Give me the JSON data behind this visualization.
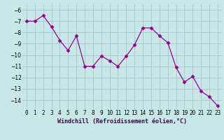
{
  "x": [
    0,
    1,
    2,
    3,
    4,
    5,
    6,
    7,
    8,
    9,
    10,
    11,
    12,
    13,
    14,
    15,
    16,
    17,
    18,
    19,
    20,
    21,
    22,
    23
  ],
  "y": [
    -7.0,
    -7.0,
    -6.5,
    -7.5,
    -8.7,
    -9.6,
    -8.3,
    -11.0,
    -11.0,
    -10.1,
    -10.5,
    -11.0,
    -10.1,
    -9.1,
    -7.6,
    -7.6,
    -8.3,
    -8.9,
    -11.1,
    -12.4,
    -11.9,
    -13.2,
    -13.7,
    -14.5
  ],
  "line_color": "#990099",
  "marker": "D",
  "marker_size": 2.5,
  "bg_color": "#c8e8e8",
  "grid_color": "#aacccc",
  "xlabel": "Windchill (Refroidissement éolien,°C)",
  "xlabel_fontsize": 6.0,
  "xlim": [
    -0.5,
    23.5
  ],
  "ylim": [
    -14.8,
    -5.5
  ],
  "yticks": [
    -14,
    -13,
    -12,
    -11,
    -10,
    -9,
    -8,
    -7,
    -6
  ],
  "xtick_labels": [
    "0",
    "1",
    "2",
    "3",
    "4",
    "5",
    "6",
    "7",
    "8",
    "9",
    "10",
    "11",
    "12",
    "13",
    "14",
    "15",
    "16",
    "17",
    "18",
    "19",
    "20",
    "21",
    "22",
    "23"
  ],
  "tick_fontsize": 5.5
}
